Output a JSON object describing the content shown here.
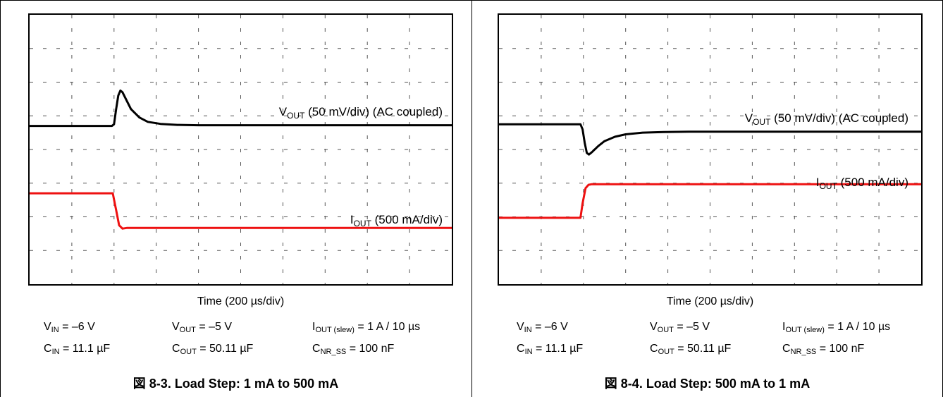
{
  "chart_data": [
    {
      "type": "line",
      "title": "図 8-3. Load Step: 1 mA to 500 mA",
      "xlabel": "Time (200 µs/div)",
      "grid": true,
      "divisions": {
        "x": 10,
        "y": 8
      },
      "x_unit": "div",
      "xlim": [
        0,
        10
      ],
      "ylim": [
        0,
        8
      ],
      "series": [
        {
          "name": "VOUT (50 mV/div) (AC coupled)",
          "label_main": "V",
          "label_sub": "OUT",
          "label_rest": " (50 mV/div) (AC coupled)",
          "color": "#000000",
          "x": [
            0,
            1.95,
            2.0,
            2.05,
            2.1,
            2.15,
            2.2,
            2.3,
            2.4,
            2.6,
            2.8,
            3.1,
            3.5,
            4.0,
            10
          ],
          "y": [
            4.7,
            4.7,
            4.75,
            5.2,
            5.6,
            5.75,
            5.7,
            5.45,
            5.2,
            4.95,
            4.82,
            4.76,
            4.73,
            4.72,
            4.72
          ]
        },
        {
          "name": "IOUT (500 mA/div)",
          "label_main": "I",
          "label_sub": "OUT",
          "label_rest": " (500 mA/div)",
          "color": "#ee1111",
          "x": [
            0,
            1.97,
            2.05,
            2.12,
            2.2,
            2.3,
            10
          ],
          "y": [
            2.7,
            2.7,
            2.2,
            1.75,
            1.65,
            1.67,
            1.67
          ]
        }
      ]
    },
    {
      "type": "line",
      "title": "図 8-4. Load Step: 500 mA to 1 mA",
      "xlabel": "Time (200 µs/div)",
      "grid": true,
      "divisions": {
        "x": 10,
        "y": 8
      },
      "x_unit": "div",
      "xlim": [
        0,
        10
      ],
      "ylim": [
        0,
        8
      ],
      "series": [
        {
          "name": "VOUT (50 mV/div) (AC coupled)",
          "label_main": "V",
          "label_sub": "OUT",
          "label_rest": " (50 mV/div) (AC coupled)",
          "color": "#000000",
          "x": [
            0,
            1.93,
            1.98,
            2.03,
            2.08,
            2.13,
            2.2,
            2.35,
            2.5,
            2.75,
            3.0,
            3.4,
            3.9,
            4.5,
            10
          ],
          "y": [
            4.75,
            4.75,
            4.6,
            4.2,
            3.9,
            3.85,
            3.92,
            4.1,
            4.25,
            4.38,
            4.45,
            4.5,
            4.52,
            4.53,
            4.53
          ]
        },
        {
          "name": "IOUT (500 mA/div)",
          "label_main": "I",
          "label_sub": "OUT",
          "label_rest": " (500 mA/div)",
          "color": "#ee1111",
          "x": [
            0,
            1.93,
            1.98,
            2.05,
            2.12,
            2.2,
            10
          ],
          "y": [
            1.97,
            1.97,
            2.4,
            2.85,
            2.95,
            2.97,
            2.97
          ]
        }
      ]
    }
  ],
  "conditions": {
    "vin": {
      "main": "V",
      "sub": "IN",
      "rest": " = –6 V"
    },
    "vout": {
      "main": "V",
      "sub": "OUT",
      "rest": " = –5 V"
    },
    "iout_slew": {
      "main": "I",
      "sub": "OUT (slew)",
      "rest": " = 1 A / 10 µs"
    },
    "cin": {
      "main": "C",
      "sub": "IN",
      "rest": " = 11.1 µF"
    },
    "cout": {
      "main": "C",
      "sub": "OUT",
      "rest": " = 50.11 µF"
    },
    "cnr": {
      "main": "C",
      "sub": "NR_SS",
      "rest": " = 100 nF"
    }
  }
}
